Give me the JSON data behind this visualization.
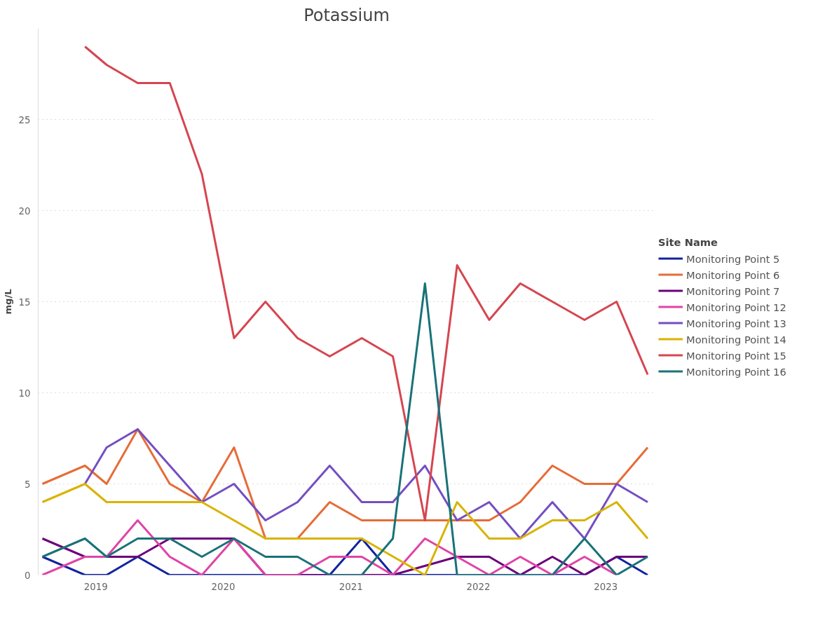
{
  "chart_data": {
    "type": "line",
    "title": "Potassium",
    "ylabel": "mg/L",
    "legend_title": "Site Name",
    "legend": "right",
    "grid": "y",
    "line_style": "solid",
    "marker": "none",
    "x": [
      "2018-08",
      "2018-12",
      "2019-02",
      "2019-05",
      "2019-08",
      "2019-11",
      "2020-02",
      "2020-05",
      "2020-08",
      "2020-11",
      "2021-02",
      "2021-05",
      "2021-08",
      "2021-11",
      "2022-02",
      "2022-05",
      "2022-08",
      "2022-11",
      "2023-02",
      "2023-05"
    ],
    "xlim": [
      "2018-07-20",
      "2023-05-22"
    ],
    "xticks": [
      {
        "value": "2019",
        "label": "2019"
      },
      {
        "value": "2020",
        "label": "2020"
      },
      {
        "value": "2021",
        "label": "2021"
      },
      {
        "value": "2022",
        "label": "2022"
      },
      {
        "value": "2023",
        "label": "2023"
      }
    ],
    "ylim": [
      0,
      30
    ],
    "yticks": [
      0,
      5,
      10,
      15,
      20,
      25
    ],
    "series": [
      {
        "name": "Monitoring Point 5",
        "color": "#12239e",
        "values": [
          1,
          0,
          0,
          1,
          0,
          0,
          0,
          0,
          0,
          0,
          2,
          0,
          0,
          0,
          0,
          0,
          0,
          0,
          1,
          0
        ]
      },
      {
        "name": "Monitoring Point 6",
        "color": "#e66c37",
        "values": [
          5,
          6,
          5,
          8,
          5,
          4,
          7,
          2,
          2,
          4,
          3,
          3,
          3,
          3,
          3,
          4,
          6,
          5,
          5,
          7
        ]
      },
      {
        "name": "Monitoring Point 7",
        "color": "#6b007b",
        "x": [
          "2018-08",
          "2018-12",
          "2019-02",
          "2019-05",
          "2019-08",
          "2019-11",
          "2020-02",
          "2020-05",
          "2020-08",
          "2020-11",
          "2021-02",
          "2021-05",
          "2021-11",
          "2022-02",
          "2022-05",
          "2022-08",
          "2022-11",
          "2023-02",
          "2023-05"
        ],
        "values": [
          2,
          1,
          1,
          1,
          2,
          2,
          2,
          0,
          0,
          0,
          0,
          0,
          1,
          1,
          0,
          1,
          0,
          1,
          1
        ]
      },
      {
        "name": "Monitoring Point 12",
        "color": "#e044a7",
        "x": [
          "2018-08",
          "2018-12",
          "2019-02",
          "2019-05",
          "2019-08",
          "2019-11",
          "2020-02",
          "2020-05",
          "2020-08",
          "2020-11",
          "2021-02",
          "2021-05",
          "2021-08",
          "2022-02",
          "2022-05",
          "2022-08",
          "2022-11",
          "2023-02"
        ],
        "values": [
          0,
          1,
          1,
          3,
          1,
          0,
          2,
          0,
          0,
          1,
          1,
          0,
          2,
          0,
          1,
          0,
          1,
          0
        ]
      },
      {
        "name": "Monitoring Point 13",
        "color": "#744ec2",
        "x": [
          "2018-12",
          "2019-02",
          "2019-05",
          "2019-08",
          "2019-11",
          "2020-02",
          "2020-05",
          "2020-08",
          "2020-11",
          "2021-02",
          "2021-05",
          "2021-08",
          "2021-11",
          "2022-02",
          "2022-05",
          "2022-08",
          "2022-11",
          "2023-02",
          "2023-05"
        ],
        "values": [
          5,
          7,
          8,
          6,
          4,
          5,
          3,
          4,
          6,
          4,
          4,
          6,
          3,
          4,
          2,
          4,
          2,
          5,
          4
        ]
      },
      {
        "name": "Monitoring Point 14",
        "color": "#d9b300",
        "x": [
          "2018-08",
          "2018-12",
          "2019-02",
          "2019-05",
          "2019-08",
          "2019-11",
          "2020-02",
          "2020-05",
          "2020-08",
          "2020-11",
          "2021-02",
          "2021-08",
          "2021-11",
          "2022-02",
          "2022-05",
          "2022-08",
          "2022-11",
          "2023-02",
          "2023-05"
        ],
        "values": [
          4,
          5,
          4,
          4,
          4,
          4,
          3,
          2,
          2,
          2,
          2,
          0,
          4,
          2,
          2,
          3,
          3,
          4,
          2
        ]
      },
      {
        "name": "Monitoring Point 15",
        "color": "#d64550",
        "x": [
          "2018-12",
          "2019-02",
          "2019-05",
          "2019-08",
          "2019-11",
          "2020-02",
          "2020-05",
          "2020-08",
          "2020-11",
          "2021-02",
          "2021-05",
          "2021-08",
          "2021-11",
          "2022-02",
          "2022-05",
          "2022-08",
          "2022-11",
          "2023-02",
          "2023-05"
        ],
        "values": [
          29,
          28,
          27,
          27,
          22,
          13,
          15,
          13,
          12,
          13,
          12,
          3,
          17,
          14,
          16,
          15,
          14,
          15,
          11
        ]
      },
      {
        "name": "Monitoring Point 16",
        "color": "#197278",
        "values": [
          1,
          2,
          1,
          2,
          2,
          1,
          2,
          1,
          1,
          0,
          0,
          2,
          16,
          0,
          0,
          0,
          0,
          2,
          0,
          1
        ]
      }
    ]
  }
}
